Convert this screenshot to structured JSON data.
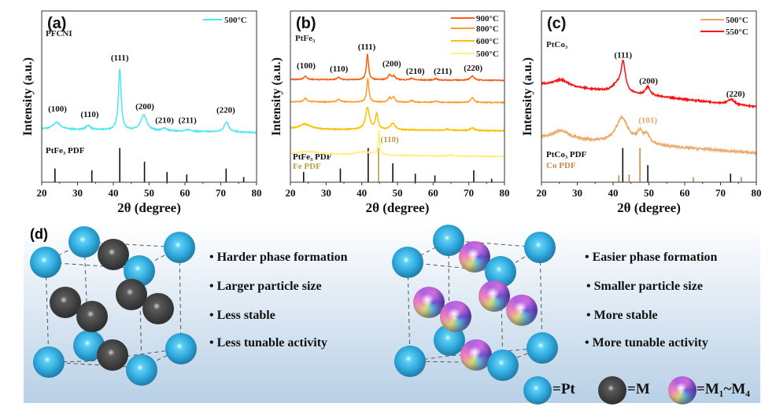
{
  "chart_data": [
    {
      "panel": "(a)",
      "type": "line",
      "xlabel": "2θ (degree)",
      "ylabel": "Intensity (a.u.)",
      "xlim": [
        20,
        80
      ],
      "ylim": [
        0,
        100
      ],
      "xticks": [
        20,
        30,
        40,
        50,
        60,
        70,
        80
      ],
      "sample_label": "PFCNI",
      "series": [
        {
          "name": "500°C",
          "color": "#4de8f0",
          "baseline": [
            31,
            29
          ],
          "noise": 0.7,
          "peaks": [
            [
              24.2,
              4,
              2.5
            ],
            [
              33,
              2.5,
              1.5
            ],
            [
              41.8,
              36,
              0.9
            ],
            [
              48.5,
              9,
              2
            ],
            [
              54.3,
              1.5,
              1.5
            ],
            [
              61,
              1,
              2
            ],
            [
              71.6,
              6,
              1.5
            ]
          ]
        }
      ],
      "references": [
        {
          "name": "PtFe₃ PDF",
          "color": "#111111",
          "lines": [
            [
              23.7,
              8
            ],
            [
              34,
              7
            ],
            [
              41.8,
              20
            ],
            [
              48.7,
              12
            ],
            [
              55,
              6
            ],
            [
              60.5,
              4.5
            ],
            [
              71.5,
              8
            ],
            [
              76.4,
              3
            ]
          ]
        }
      ],
      "annotations": [
        {
          "text": "(100)",
          "x": 24.4,
          "y": 42.7,
          "color": "#111111"
        },
        {
          "text": "(110)",
          "x": 33.4,
          "y": 39.4,
          "color": "#111111"
        },
        {
          "text": "(111)",
          "x": 41.8,
          "y": 72.5,
          "color": "#111111"
        },
        {
          "text": "(200)",
          "x": 48.8,
          "y": 44,
          "color": "#111111"
        },
        {
          "text": "(210)",
          "x": 54.3,
          "y": 36,
          "color": "#111111"
        },
        {
          "text": "(211)",
          "x": 60.7,
          "y": 36,
          "color": "#111111"
        },
        {
          "text": "(220)",
          "x": 71.4,
          "y": 42,
          "color": "#111111"
        }
      ]
    },
    {
      "panel": "(b)",
      "type": "line",
      "xlabel": "2θ (degree)",
      "ylabel": "Intensity (a.u.)",
      "xlim": [
        20,
        80
      ],
      "ylim": [
        0,
        100
      ],
      "xticks": [
        20,
        30,
        40,
        50,
        60,
        70,
        80
      ],
      "sample_label": "PtFe₃",
      "series": [
        {
          "name": "500°C",
          "color": "#fff07a",
          "baseline": [
            16,
            15
          ],
          "noise": 0.6,
          "peaks": [
            [
              25,
              2,
              8
            ],
            [
              40.5,
              2,
              6
            ],
            [
              44.8,
              14,
              0.5
            ],
            [
              65,
              1,
              0.6
            ]
          ]
        },
        {
          "name": "600°C",
          "color": "#ffc000",
          "baseline": [
            31,
            30
          ],
          "noise": 0.6,
          "peaks": [
            [
              24,
              3,
              4
            ],
            [
              41.6,
              13,
              1.3
            ],
            [
              44.2,
              9,
              0.9
            ],
            [
              48.7,
              4,
              1.5
            ],
            [
              64,
              0.8,
              1
            ],
            [
              71,
              1.5,
              1.5
            ]
          ]
        },
        {
          "name": "800°C",
          "color": "#ff9a30",
          "baseline": [
            47,
            46.5
          ],
          "noise": 0.5,
          "peaks": [
            [
              24.2,
              2,
              1
            ],
            [
              33.5,
              1.5,
              1
            ],
            [
              41.7,
              14,
              0.7
            ],
            [
              47.8,
              2.5,
              0.8
            ],
            [
              48.9,
              3,
              0.9
            ],
            [
              54,
              1,
              1
            ],
            [
              60.7,
              0.8,
              1
            ],
            [
              71,
              2.8,
              1
            ]
          ]
        },
        {
          "name": "900°C",
          "color": "#ff5a10",
          "baseline": [
            60,
            59.5
          ],
          "noise": 0.5,
          "peaks": [
            [
              24.2,
              2,
              1
            ],
            [
              33.5,
              1.5,
              1
            ],
            [
              41.6,
              15,
              0.7
            ],
            [
              47.8,
              3,
              1
            ],
            [
              49,
              2,
              1
            ],
            [
              54,
              1,
              1
            ],
            [
              60.7,
              0.8,
              1
            ],
            [
              71,
              2.5,
              1.2
            ]
          ]
        }
      ],
      "references": [
        {
          "name": "PtFe₃ PDF",
          "color": "#111111",
          "lines": [
            [
              23.7,
              6
            ],
            [
              34,
              8
            ],
            [
              41.8,
              20
            ],
            [
              48.7,
              11
            ],
            [
              55,
              5
            ],
            [
              60.5,
              4
            ],
            [
              71.4,
              7
            ],
            [
              76.4,
              2
            ]
          ]
        },
        {
          "name": "Fe PDF",
          "color": "#b8a040",
          "lines": [
            [
              44.7,
              20
            ]
          ]
        }
      ],
      "annotations": [
        {
          "text": "(100)",
          "x": 24.4,
          "y": 68,
          "color": "#111111"
        },
        {
          "text": "(110)",
          "x": 33.6,
          "y": 66,
          "color": "#111111"
        },
        {
          "text": "(111)",
          "x": 41.4,
          "y": 79,
          "color": "#111111"
        },
        {
          "text": "(200)",
          "x": 48.4,
          "y": 69,
          "color": "#111111"
        },
        {
          "text": "(210)",
          "x": 55,
          "y": 64.7,
          "color": "#111111"
        },
        {
          "text": "(211)",
          "x": 62.7,
          "y": 64.7,
          "color": "#111111"
        },
        {
          "text": "(220)",
          "x": 71.2,
          "y": 66.5,
          "color": "#111111"
        },
        {
          "text": "(110)",
          "x": 47.8,
          "y": 24.8,
          "color": "#c09a48"
        }
      ]
    },
    {
      "panel": "(c)",
      "type": "line",
      "xlabel": "2θ (degree)",
      "ylabel": "Intensity (a.u.)",
      "xlim": [
        20,
        80
      ],
      "ylim": [
        0,
        100
      ],
      "xticks": [
        20,
        30,
        40,
        50,
        60,
        70,
        80
      ],
      "sample_label": "PtCo₃",
      "series": [
        {
          "name": "500°C",
          "color": "#f0a868",
          "baseline": [
            26,
            17
          ],
          "noise": 1.4,
          "peaks": [
            [
              25.5,
              5,
              5
            ],
            [
              42.5,
              15,
              4
            ],
            [
              47.5,
              6,
              2
            ],
            [
              49.5,
              5,
              2
            ]
          ]
        },
        {
          "name": "550°C",
          "color": "#ff1010",
          "baseline": [
            57,
            44
          ],
          "noise": 0.9,
          "peaks": [
            [
              25.5,
              4,
              5
            ],
            [
              41,
              4,
              3
            ],
            [
              42.8,
              17,
              1.5
            ],
            [
              49.7,
              5,
              1.5
            ],
            [
              73,
              3,
              2
            ]
          ]
        }
      ],
      "references": [
        {
          "name": "PtCo₃ PDF",
          "color": "#111111",
          "lines": [
            [
              42.7,
              20
            ],
            [
              49.7,
              10
            ],
            [
              72.8,
              5
            ]
          ]
        },
        {
          "name": "Co PDF",
          "color": "#c8894a",
          "lines": [
            [
              41.6,
              4
            ],
            [
              44.5,
              4.5
            ],
            [
              47.5,
              20
            ],
            [
              62.4,
              3
            ],
            [
              75.8,
              3
            ]
          ]
        }
      ],
      "annotations": [
        {
          "text": "(111)",
          "x": 42.8,
          "y": 74,
          "color": "#111111"
        },
        {
          "text": "(200)",
          "x": 49.9,
          "y": 59,
          "color": "#111111"
        },
        {
          "text": "(220)",
          "x": 74.2,
          "y": 51.4,
          "color": "#111111"
        },
        {
          "text": "(101)",
          "x": 49.7,
          "y": 36,
          "color": "#f0a060"
        }
      ]
    }
  ],
  "schematic": {
    "label": "(d)",
    "left_bullets": [
      "• Harder phase formation",
      "• Larger particle size",
      "• Less stable",
      "• Less tunable activity"
    ],
    "right_bullets": [
      "• Easier phase formation",
      "• Smaller particle size",
      "• More stable",
      "• More tunable activity"
    ],
    "legend": {
      "pt": "=Pt",
      "m": "=M",
      "multi": "=M₁~M₄"
    }
  }
}
